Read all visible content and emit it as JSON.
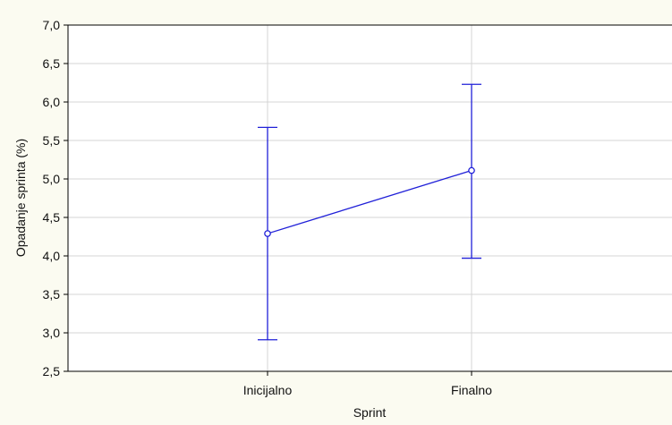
{
  "chart_data": {
    "type": "line",
    "xlabel": "Sprint",
    "ylabel": "Opadanje sprinta (%)",
    "ylim": [
      2.5,
      7.0
    ],
    "y_ticks": [
      "7,0",
      "6,5",
      "6,0",
      "5,5",
      "5,0",
      "4,5",
      "4,0",
      "3,5",
      "3,0",
      "2,5"
    ],
    "categories": [
      "Inicijalno",
      "Finalno"
    ],
    "series": [
      {
        "values": [
          4.29,
          5.11
        ],
        "error_low": [
          2.91,
          3.97
        ],
        "error_high": [
          5.67,
          6.23
        ],
        "color": "#2020d8"
      }
    ],
    "grid": true
  }
}
